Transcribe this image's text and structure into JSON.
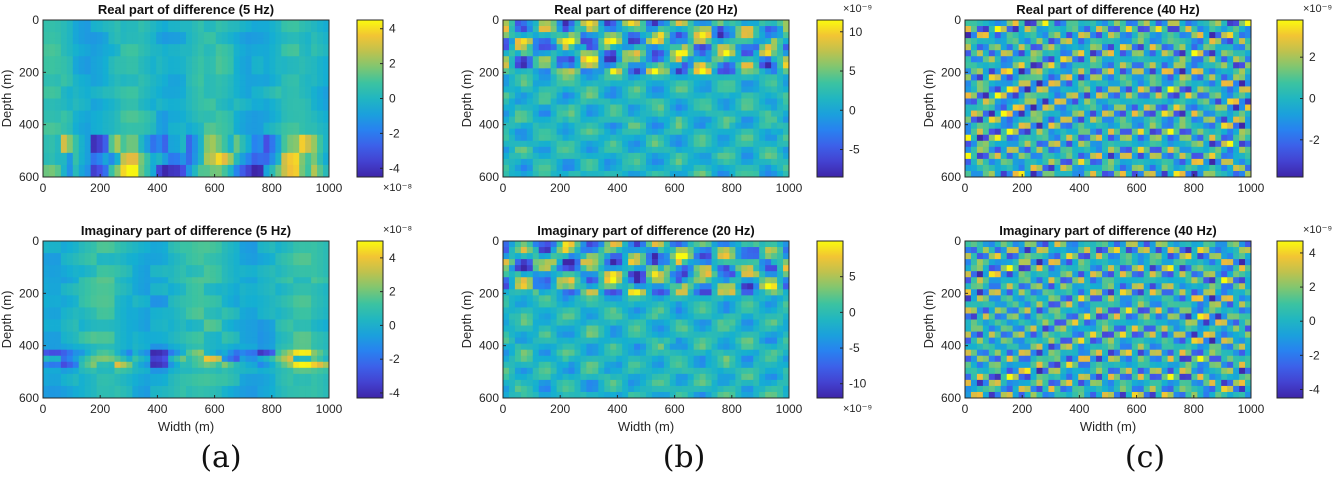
{
  "chart_data": [
    {
      "type": "heatmap",
      "title": "Real part of difference (5 Hz)",
      "xlabel": "",
      "ylabel": "Depth (m)",
      "xlim": [
        0,
        1000
      ],
      "ylim": [
        0,
        600
      ],
      "y_reversed": true,
      "xticks": [
        "0",
        "200",
        "400",
        "600",
        "800",
        "1000"
      ],
      "yticks": [
        "0",
        "200",
        "400",
        "600"
      ],
      "colorbar": {
        "ticks": [
          "4",
          "2",
          "0",
          "-2",
          "-4"
        ],
        "range": [
          -4.5,
          4.5
        ],
        "exponent": "×10⁻⁸",
        "exponent_pos": "bottom"
      },
      "pattern": "low-freq-bands"
    },
    {
      "type": "heatmap",
      "title": "Real part of difference (20 Hz)",
      "xlabel": "",
      "ylabel": "Depth (m)",
      "xlim": [
        0,
        1000
      ],
      "ylim": [
        0,
        600
      ],
      "y_reversed": true,
      "xticks": [
        "0",
        "200",
        "400",
        "600",
        "800",
        "1000"
      ],
      "yticks": [
        "0",
        "200",
        "400",
        "600"
      ],
      "colorbar": {
        "ticks": [
          "10",
          "5",
          "0",
          "-5"
        ],
        "range": [
          -8.5,
          11.5
        ],
        "exponent": "×10⁻⁹",
        "exponent_pos": "top"
      },
      "pattern": "mid-freq-stripes"
    },
    {
      "type": "heatmap",
      "title": "Real part of difference (40 Hz)",
      "xlabel": "",
      "ylabel": "Depth (m)",
      "xlim": [
        0,
        1000
      ],
      "ylim": [
        0,
        600
      ],
      "y_reversed": true,
      "xticks": [
        "0",
        "200",
        "400",
        "600",
        "800",
        "1000"
      ],
      "yticks": [
        "0",
        "200",
        "400",
        "600"
      ],
      "colorbar": {
        "ticks": [
          "2",
          "0",
          "-2"
        ],
        "range": [
          -3.8,
          3.8
        ],
        "exponent": "×10⁻⁹",
        "exponent_pos": "top"
      },
      "pattern": "high-freq-checker"
    },
    {
      "type": "heatmap",
      "title": "Imaginary part of difference (5 Hz)",
      "xlabel": "Width (m)",
      "ylabel": "Depth (m)",
      "xlim": [
        0,
        1000
      ],
      "ylim": [
        0,
        600
      ],
      "y_reversed": true,
      "xticks": [
        "0",
        "200",
        "400",
        "600",
        "800",
        "1000"
      ],
      "yticks": [
        "0",
        "200",
        "400",
        "600"
      ],
      "colorbar": {
        "ticks": [
          "4",
          "2",
          "0",
          "-2",
          "-4"
        ],
        "range": [
          -4.3,
          5.0
        ],
        "exponent": "×10⁻⁸",
        "exponent_pos": "top"
      },
      "pattern": "low-freq-line"
    },
    {
      "type": "heatmap",
      "title": "Imaginary part of difference (20 Hz)",
      "xlabel": "Width (m)",
      "ylabel": "Depth (m)",
      "xlim": [
        0,
        1000
      ],
      "ylim": [
        0,
        600
      ],
      "y_reversed": true,
      "xticks": [
        "0",
        "200",
        "400",
        "600",
        "800",
        "1000"
      ],
      "yticks": [
        "0",
        "200",
        "400",
        "600"
      ],
      "colorbar": {
        "ticks": [
          "5",
          "0",
          "-5",
          "-10"
        ],
        "range": [
          -12,
          10
        ],
        "exponent": "×10⁻⁹",
        "exponent_pos": "bottom"
      },
      "pattern": "mid-freq-stripes"
    },
    {
      "type": "heatmap",
      "title": "Imaginary part of difference (40 Hz)",
      "xlabel": "Width (m)",
      "ylabel": "Depth (m)",
      "xlim": [
        0,
        1000
      ],
      "ylim": [
        0,
        600
      ],
      "y_reversed": true,
      "xticks": [
        "0",
        "200",
        "400",
        "600",
        "800",
        "1000"
      ],
      "yticks": [
        "0",
        "200",
        "400",
        "600"
      ],
      "colorbar": {
        "ticks": [
          "4",
          "2",
          "0",
          "-2",
          "-4"
        ],
        "range": [
          -4.5,
          4.7
        ],
        "exponent": "×10⁻⁹",
        "exponent_pos": "top"
      },
      "pattern": "high-freq-checker"
    }
  ],
  "captions": [
    "(a)",
    "(b)",
    "(c)"
  ]
}
